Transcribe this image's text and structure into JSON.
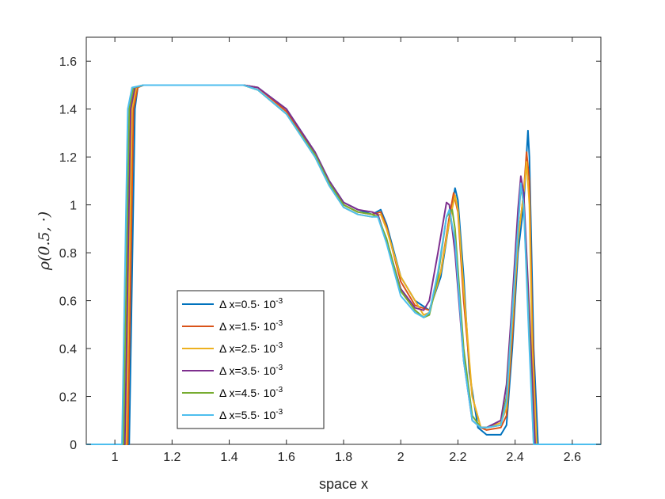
{
  "chart_data": {
    "type": "line",
    "title": "",
    "xlabel": "space x",
    "ylabel": "ρ(0.5, ·)",
    "xlim": [
      0.9,
      2.7
    ],
    "ylim": [
      0,
      1.7
    ],
    "xticks": [
      "1",
      "1.2",
      "1.4",
      "1.6",
      "1.8",
      "2",
      "2.2",
      "2.4",
      "2.6"
    ],
    "yticks": [
      "0",
      "0.2",
      "0.4",
      "0.6",
      "0.8",
      "1",
      "1.2",
      "1.4",
      "1.6"
    ],
    "legend_position": "lower-left",
    "series": [
      {
        "name": "Δ x=0.5· 10⁻³",
        "label_main": "Δ x=0.5· 10",
        "label_exp": "-3",
        "color": "#0072BD",
        "points": [
          [
            0.9,
            0
          ],
          [
            1.05,
            0
          ],
          [
            1.07,
            1.4
          ],
          [
            1.08,
            1.49
          ],
          [
            1.1,
            1.5
          ],
          [
            1.45,
            1.5
          ],
          [
            1.5,
            1.49
          ],
          [
            1.6,
            1.4
          ],
          [
            1.7,
            1.22
          ],
          [
            1.75,
            1.1
          ],
          [
            1.8,
            1.01
          ],
          [
            1.85,
            0.98
          ],
          [
            1.9,
            0.96
          ],
          [
            1.93,
            0.98
          ],
          [
            1.95,
            0.92
          ],
          [
            2.0,
            0.7
          ],
          [
            2.05,
            0.6
          ],
          [
            2.1,
            0.56
          ],
          [
            2.14,
            0.7
          ],
          [
            2.17,
            0.93
          ],
          [
            2.19,
            1.07
          ],
          [
            2.2,
            1.02
          ],
          [
            2.22,
            0.7
          ],
          [
            2.24,
            0.3
          ],
          [
            2.27,
            0.07
          ],
          [
            2.3,
            0.04
          ],
          [
            2.35,
            0.04
          ],
          [
            2.37,
            0.08
          ],
          [
            2.39,
            0.4
          ],
          [
            2.41,
            0.8
          ],
          [
            2.43,
            1.0
          ],
          [
            2.445,
            1.31
          ],
          [
            2.45,
            1.2
          ],
          [
            2.465,
            0.4
          ],
          [
            2.48,
            0
          ],
          [
            2.7,
            0
          ]
        ]
      },
      {
        "name": "Δ x=1.5· 10⁻³",
        "label_main": "Δ x=1.5· 10",
        "label_exp": "-3",
        "color": "#D95319",
        "points": [
          [
            0.9,
            0
          ],
          [
            1.045,
            0
          ],
          [
            1.065,
            1.4
          ],
          [
            1.08,
            1.49
          ],
          [
            1.1,
            1.5
          ],
          [
            1.45,
            1.5
          ],
          [
            1.5,
            1.49
          ],
          [
            1.6,
            1.39
          ],
          [
            1.7,
            1.21
          ],
          [
            1.75,
            1.09
          ],
          [
            1.8,
            1.0
          ],
          [
            1.85,
            0.97
          ],
          [
            1.9,
            0.96
          ],
          [
            1.93,
            0.97
          ],
          [
            1.95,
            0.91
          ],
          [
            2.0,
            0.68
          ],
          [
            2.05,
            0.58
          ],
          [
            2.1,
            0.56
          ],
          [
            2.14,
            0.72
          ],
          [
            2.17,
            0.95
          ],
          [
            2.185,
            1.05
          ],
          [
            2.2,
            0.97
          ],
          [
            2.22,
            0.6
          ],
          [
            2.25,
            0.2
          ],
          [
            2.28,
            0.07
          ],
          [
            2.3,
            0.06
          ],
          [
            2.35,
            0.07
          ],
          [
            2.37,
            0.12
          ],
          [
            2.39,
            0.45
          ],
          [
            2.41,
            0.85
          ],
          [
            2.43,
            1.05
          ],
          [
            2.44,
            1.22
          ],
          [
            2.45,
            1.1
          ],
          [
            2.46,
            0.5
          ],
          [
            2.475,
            0
          ],
          [
            2.7,
            0
          ]
        ]
      },
      {
        "name": "Δ x=2.5· 10⁻³",
        "label_main": "Δ x=2.5· 10",
        "label_exp": "-3",
        "color": "#EDB120",
        "points": [
          [
            0.9,
            0
          ],
          [
            1.04,
            0
          ],
          [
            1.06,
            1.4
          ],
          [
            1.075,
            1.49
          ],
          [
            1.1,
            1.5
          ],
          [
            1.45,
            1.5
          ],
          [
            1.5,
            1.48
          ],
          [
            1.6,
            1.38
          ],
          [
            1.7,
            1.2
          ],
          [
            1.75,
            1.08
          ],
          [
            1.8,
            0.99
          ],
          [
            1.85,
            0.96
          ],
          [
            1.9,
            0.95
          ],
          [
            1.93,
            0.96
          ],
          [
            1.95,
            0.9
          ],
          [
            2.0,
            0.7
          ],
          [
            2.05,
            0.6
          ],
          [
            2.08,
            0.54
          ],
          [
            2.1,
            0.55
          ],
          [
            2.14,
            0.72
          ],
          [
            2.17,
            0.93
          ],
          [
            2.19,
            1.04
          ],
          [
            2.2,
            0.98
          ],
          [
            2.22,
            0.65
          ],
          [
            2.25,
            0.2
          ],
          [
            2.28,
            0.07
          ],
          [
            2.3,
            0.07
          ],
          [
            2.35,
            0.09
          ],
          [
            2.37,
            0.15
          ],
          [
            2.39,
            0.5
          ],
          [
            2.41,
            0.85
          ],
          [
            2.43,
            1.05
          ],
          [
            2.44,
            1.18
          ],
          [
            2.45,
            1.0
          ],
          [
            2.46,
            0.4
          ],
          [
            2.475,
            0
          ],
          [
            2.7,
            0
          ]
        ]
      },
      {
        "name": "Δ x=3.5· 10⁻³",
        "label_main": "Δ x=3.5· 10",
        "label_exp": "-3",
        "color": "#7E2F8E",
        "points": [
          [
            0.9,
            0
          ],
          [
            1.035,
            0
          ],
          [
            1.055,
            1.4
          ],
          [
            1.07,
            1.49
          ],
          [
            1.1,
            1.5
          ],
          [
            1.45,
            1.5
          ],
          [
            1.5,
            1.49
          ],
          [
            1.6,
            1.4
          ],
          [
            1.7,
            1.22
          ],
          [
            1.75,
            1.1
          ],
          [
            1.8,
            1.01
          ],
          [
            1.85,
            0.98
          ],
          [
            1.9,
            0.97
          ],
          [
            1.92,
            0.96
          ],
          [
            1.95,
            0.85
          ],
          [
            2.0,
            0.65
          ],
          [
            2.05,
            0.57
          ],
          [
            2.08,
            0.56
          ],
          [
            2.1,
            0.6
          ],
          [
            2.13,
            0.8
          ],
          [
            2.16,
            1.01
          ],
          [
            2.17,
            1.0
          ],
          [
            2.19,
            0.8
          ],
          [
            2.22,
            0.35
          ],
          [
            2.25,
            0.1
          ],
          [
            2.28,
            0.07
          ],
          [
            2.3,
            0.07
          ],
          [
            2.35,
            0.1
          ],
          [
            2.37,
            0.25
          ],
          [
            2.39,
            0.6
          ],
          [
            2.41,
            0.98
          ],
          [
            2.42,
            1.12
          ],
          [
            2.43,
            1.05
          ],
          [
            2.45,
            0.55
          ],
          [
            2.47,
            0
          ],
          [
            2.7,
            0
          ]
        ]
      },
      {
        "name": "Δ x=4.5· 10⁻³",
        "label_main": "Δ x=4.5· 10",
        "label_exp": "-3",
        "color": "#77AC30",
        "points": [
          [
            0.9,
            0
          ],
          [
            1.03,
            0
          ],
          [
            1.05,
            1.4
          ],
          [
            1.065,
            1.49
          ],
          [
            1.1,
            1.5
          ],
          [
            1.45,
            1.5
          ],
          [
            1.5,
            1.48
          ],
          [
            1.6,
            1.38
          ],
          [
            1.7,
            1.21
          ],
          [
            1.75,
            1.09
          ],
          [
            1.8,
            1.0
          ],
          [
            1.85,
            0.97
          ],
          [
            1.9,
            0.96
          ],
          [
            1.92,
            0.95
          ],
          [
            1.95,
            0.86
          ],
          [
            2.0,
            0.64
          ],
          [
            2.05,
            0.56
          ],
          [
            2.08,
            0.53
          ],
          [
            2.1,
            0.54
          ],
          [
            2.13,
            0.7
          ],
          [
            2.16,
            0.95
          ],
          [
            2.18,
            0.98
          ],
          [
            2.19,
            0.9
          ],
          [
            2.22,
            0.4
          ],
          [
            2.25,
            0.12
          ],
          [
            2.28,
            0.07
          ],
          [
            2.3,
            0.07
          ],
          [
            2.35,
            0.08
          ],
          [
            2.37,
            0.2
          ],
          [
            2.39,
            0.55
          ],
          [
            2.41,
            0.9
          ],
          [
            2.42,
            1.08
          ],
          [
            2.43,
            1.0
          ],
          [
            2.45,
            0.45
          ],
          [
            2.465,
            0
          ],
          [
            2.7,
            0
          ]
        ]
      },
      {
        "name": "Δ x=5.5· 10⁻³",
        "label_main": "Δ x=5.5· 10",
        "label_exp": "-3",
        "color": "#4DBEEE",
        "points": [
          [
            0.9,
            0
          ],
          [
            1.025,
            0
          ],
          [
            1.045,
            1.4
          ],
          [
            1.06,
            1.49
          ],
          [
            1.1,
            1.5
          ],
          [
            1.45,
            1.5
          ],
          [
            1.5,
            1.48
          ],
          [
            1.6,
            1.38
          ],
          [
            1.7,
            1.2
          ],
          [
            1.75,
            1.08
          ],
          [
            1.8,
            0.99
          ],
          [
            1.85,
            0.96
          ],
          [
            1.9,
            0.95
          ],
          [
            1.92,
            0.95
          ],
          [
            1.95,
            0.84
          ],
          [
            2.0,
            0.62
          ],
          [
            2.05,
            0.55
          ],
          [
            2.08,
            0.53
          ],
          [
            2.1,
            0.55
          ],
          [
            2.13,
            0.72
          ],
          [
            2.16,
            0.95
          ],
          [
            2.17,
            0.98
          ],
          [
            2.19,
            0.85
          ],
          [
            2.22,
            0.35
          ],
          [
            2.25,
            0.1
          ],
          [
            2.28,
            0.07
          ],
          [
            2.3,
            0.07
          ],
          [
            2.35,
            0.08
          ],
          [
            2.37,
            0.18
          ],
          [
            2.39,
            0.55
          ],
          [
            2.41,
            0.9
          ],
          [
            2.42,
            1.09
          ],
          [
            2.43,
            1.0
          ],
          [
            2.45,
            0.4
          ],
          [
            2.465,
            0
          ],
          [
            2.7,
            0
          ]
        ]
      }
    ]
  }
}
